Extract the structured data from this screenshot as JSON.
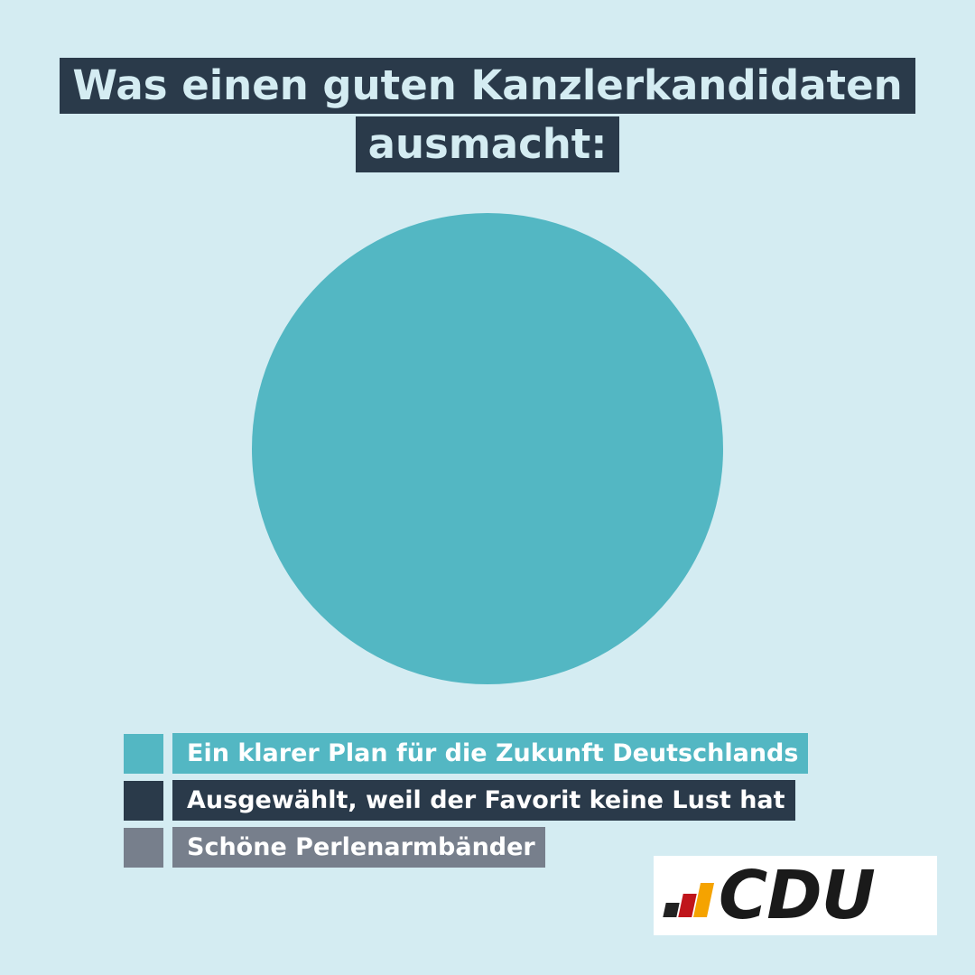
{
  "title": {
    "line1": "Was einen guten Kanzlerkandidaten",
    "line2": "ausmacht:"
  },
  "chart_data": {
    "type": "pie",
    "categories": [
      "Ein klarer Plan für die Zukunft Deutschlands",
      "Ausgewählt, weil der Favorit keine Lust hat",
      "Schöne Perlenarmbänder"
    ],
    "values": [
      100,
      0,
      0
    ],
    "colors": [
      "#53b7c3",
      "#2a3a4a",
      "#777f8c"
    ],
    "legend_position": "bottom"
  },
  "legend": {
    "items": [
      {
        "label": "Ein klarer Plan für die Zukunft Deutschlands",
        "color": "#53b7c3"
      },
      {
        "label": "Ausgewählt, weil der Favorit keine Lust hat",
        "color": "#2a3a4a"
      },
      {
        "label": "Schöne Perlenarmbänder",
        "color": "#777f8c"
      }
    ]
  },
  "logo": {
    "text": "CDU",
    "bar_colors": [
      "#222222",
      "#c0151b",
      "#f5a300"
    ],
    "background": "#ffffff"
  },
  "colors": {
    "background": "#d4ecf2",
    "title_bg": "#2a3a4a",
    "title_text": "#d4ecf2"
  }
}
